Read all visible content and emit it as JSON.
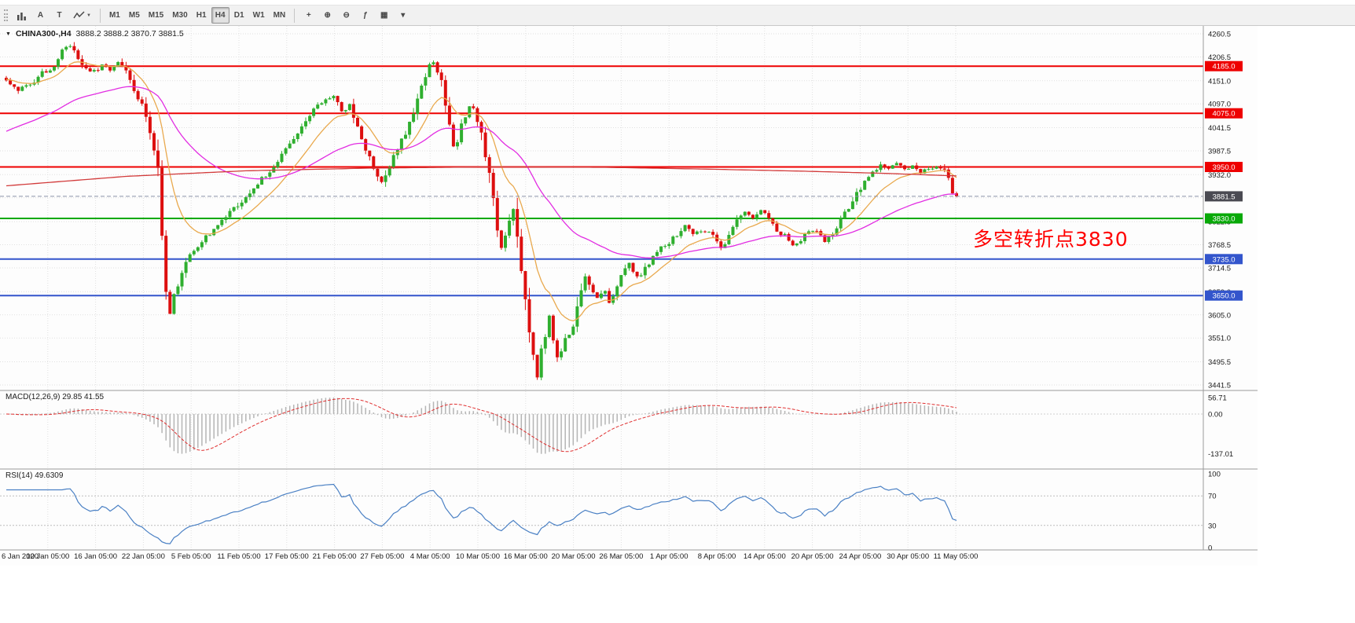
{
  "toolbar": {
    "left_buttons": [
      {
        "name": "bar-chart-icon",
        "icon": "bars"
      },
      {
        "name": "arrow-tool-button",
        "label": "A"
      },
      {
        "name": "text-tool-button",
        "label": "T"
      },
      {
        "name": "line-studies-button",
        "icon": "zigzag",
        "caret": "▼"
      }
    ],
    "timeframes": [
      {
        "label": "M1",
        "active": false
      },
      {
        "label": "M5",
        "active": false
      },
      {
        "label": "M15",
        "active": false
      },
      {
        "label": "M30",
        "active": false
      },
      {
        "label": "H1",
        "active": false
      },
      {
        "label": "H4",
        "active": true
      },
      {
        "label": "D1",
        "active": false
      },
      {
        "label": "W1",
        "active": false
      },
      {
        "label": "MN",
        "active": false
      }
    ],
    "right_buttons": [
      {
        "name": "crosshair-icon",
        "glyph": "+"
      },
      {
        "name": "zoom-in-icon",
        "glyph": "⊕"
      },
      {
        "name": "zoom-out-icon",
        "glyph": "⊖"
      },
      {
        "name": "indicators-icon",
        "glyph": "ƒ"
      },
      {
        "name": "tile-windows-icon",
        "glyph": "▦"
      },
      {
        "name": "templates-dropdown-icon",
        "glyph": "▾"
      }
    ]
  },
  "chart": {
    "menu_glyph": "▼",
    "symbol_period": "CHINA300-,H4",
    "quote": "3888.2 3888.2 3870.7 3881.5",
    "annotation": {
      "text": "多空转折点3830",
      "color": "#ff0000"
    }
  },
  "indicators": {
    "macd": {
      "label": "MACD(12,26,9) 29.85 41.55",
      "axis_labels": [
        "56.71",
        "0.00",
        "-137.01"
      ],
      "hist_color": "#b5b5b5",
      "signal_color": "#e03030"
    },
    "rsi": {
      "label": "RSI(14) 49.6309",
      "axis_labels": [
        "100",
        "70",
        "30",
        "0"
      ],
      "line_color": "#4a80c4",
      "level_values": [
        100,
        70,
        30,
        0
      ]
    }
  },
  "chart_data": {
    "type": "candlestick",
    "symbol": "CHINA300-",
    "period": "H4",
    "ohlc_quote": {
      "open": 3888.2,
      "high": 3888.2,
      "low": 3870.7,
      "close": 3881.5
    },
    "ylim": [
      3441.5,
      4260.5
    ],
    "y_ticks": [
      "4260.5",
      "4206.5",
      "4151.0",
      "4097.0",
      "4041.5",
      "3987.5",
      "3932.0",
      "3878.0",
      "3822.5",
      "3768.5",
      "3714.5",
      "3659.0",
      "3605.0",
      "3551.0",
      "3495.5",
      "3441.5"
    ],
    "x_ticks": [
      "6 Jan 2020",
      "10 Jan 05:00",
      "16 Jan 05:00",
      "22 Jan 05:00",
      "5 Feb 05:00",
      "11 Feb 05:00",
      "17 Feb 05:00",
      "21 Feb 05:00",
      "27 Feb 05:00",
      "4 Mar 05:00",
      "10 Mar 05:00",
      "16 Mar 05:00",
      "20 Mar 05:00",
      "26 Mar 05:00",
      "1 Apr 05:00",
      "8 Apr 05:00",
      "14 Apr 05:00",
      "20 Apr 05:00",
      "24 Apr 05:00",
      "30 Apr 05:00",
      "11 May 05:00"
    ],
    "candles_count": 239,
    "last_close": 3881.5,
    "up_color": "#2faf2f",
    "down_color": "#dd0f0f",
    "close_anchors": [
      [
        0,
        4152
      ],
      [
        3,
        4130
      ],
      [
        6,
        4140
      ],
      [
        9,
        4168
      ],
      [
        12,
        4185
      ],
      [
        14,
        4222
      ],
      [
        16,
        4232
      ],
      [
        18,
        4200
      ],
      [
        20,
        4178
      ],
      [
        22,
        4172
      ],
      [
        24,
        4185
      ],
      [
        26,
        4178
      ],
      [
        28,
        4196
      ],
      [
        30,
        4170
      ],
      [
        32,
        4130
      ],
      [
        34,
        4092
      ],
      [
        36,
        4036
      ],
      [
        38,
        3952
      ],
      [
        39,
        3800
      ],
      [
        40,
        3660
      ],
      [
        41,
        3608
      ],
      [
        42,
        3650
      ],
      [
        44,
        3705
      ],
      [
        46,
        3745
      ],
      [
        49,
        3775
      ],
      [
        52,
        3805
      ],
      [
        55,
        3835
      ],
      [
        58,
        3862
      ],
      [
        61,
        3890
      ],
      [
        64,
        3922
      ],
      [
        67,
        3952
      ],
      [
        70,
        3988
      ],
      [
        73,
        4030
      ],
      [
        75,
        4062
      ],
      [
        78,
        4096
      ],
      [
        80,
        4105
      ],
      [
        82,
        4112
      ],
      [
        84,
        4082
      ],
      [
        86,
        4092
      ],
      [
        88,
        4042
      ],
      [
        90,
        3992
      ],
      [
        92,
        3948
      ],
      [
        94,
        3916
      ],
      [
        96,
        3952
      ],
      [
        98,
        3992
      ],
      [
        100,
        4032
      ],
      [
        102,
        4082
      ],
      [
        104,
        4142
      ],
      [
        106,
        4186
      ],
      [
        107,
        4192
      ],
      [
        109,
        4152
      ],
      [
        110,
        4102
      ],
      [
        111,
        4052
      ],
      [
        112,
        4002
      ],
      [
        113,
        4012
      ],
      [
        114,
        4046
      ],
      [
        115,
        4072
      ],
      [
        116,
        4092
      ],
      [
        117,
        4086
      ],
      [
        118,
        4062
      ],
      [
        120,
        3982
      ],
      [
        122,
        3872
      ],
      [
        123,
        3802
      ],
      [
        124,
        3762
      ],
      [
        125,
        3792
      ],
      [
        126,
        3832
      ],
      [
        127,
        3852
      ],
      [
        128,
        3792
      ],
      [
        129,
        3702
      ],
      [
        130,
        3642
      ],
      [
        131,
        3562
      ],
      [
        132,
        3502
      ],
      [
        133,
        3462
      ],
      [
        134,
        3522
      ],
      [
        135,
        3562
      ],
      [
        136,
        3602
      ],
      [
        137,
        3552
      ],
      [
        138,
        3502
      ],
      [
        139,
        3522
      ],
      [
        140,
        3545
      ],
      [
        141,
        3562
      ],
      [
        142,
        3578
      ],
      [
        143,
        3622
      ],
      [
        144,
        3662
      ],
      [
        145,
        3697
      ],
      [
        146,
        3672
      ],
      [
        147,
        3652
      ],
      [
        148,
        3642
      ],
      [
        149,
        3652
      ],
      [
        150,
        3662
      ],
      [
        151,
        3632
      ],
      [
        152,
        3652
      ],
      [
        153,
        3672
      ],
      [
        154,
        3702
      ],
      [
        156,
        3722
      ],
      [
        158,
        3692
      ],
      [
        160,
        3712
      ],
      [
        162,
        3742
      ],
      [
        164,
        3762
      ],
      [
        166,
        3774
      ],
      [
        168,
        3792
      ],
      [
        170,
        3812
      ],
      [
        172,
        3792
      ],
      [
        174,
        3802
      ],
      [
        176,
        3802
      ],
      [
        178,
        3772
      ],
      [
        179,
        3757
      ],
      [
        181,
        3792
      ],
      [
        183,
        3822
      ],
      [
        185,
        3842
      ],
      [
        187,
        3832
      ],
      [
        189,
        3847
      ],
      [
        190,
        3840
      ],
      [
        192,
        3812
      ],
      [
        194,
        3787
      ],
      [
        195,
        3792
      ],
      [
        197,
        3767
      ],
      [
        199,
        3782
      ],
      [
        201,
        3802
      ],
      [
        203,
        3802
      ],
      [
        205,
        3777
      ],
      [
        207,
        3792
      ],
      [
        209,
        3827
      ],
      [
        211,
        3857
      ],
      [
        213,
        3887
      ],
      [
        215,
        3917
      ],
      [
        217,
        3937
      ],
      [
        219,
        3952
      ],
      [
        221,
        3947
      ],
      [
        223,
        3957
      ],
      [
        225,
        3942
      ],
      [
        227,
        3950
      ],
      [
        229,
        3937
      ],
      [
        231,
        3947
      ],
      [
        233,
        3952
      ],
      [
        235,
        3942
      ],
      [
        236,
        3920
      ],
      [
        237,
        3892
      ],
      [
        238,
        3881.5
      ]
    ],
    "levels": [
      {
        "price": 4185.0,
        "label": "4185.0",
        "color": "#ee0000"
      },
      {
        "price": 4075.0,
        "label": "4075.0",
        "color": "#ee0000"
      },
      {
        "price": 3950.0,
        "label": "3950.0",
        "color": "#ee0000"
      },
      {
        "price": 3830.0,
        "label": "3830.0",
        "color": "#08a908"
      },
      {
        "price": 3735.0,
        "label": "3735.0",
        "color": "#3355cc"
      },
      {
        "price": 3650.0,
        "label": "3650.0",
        "color": "#3355cc"
      }
    ],
    "current_price": {
      "price": 3881.5,
      "label": "3881.5",
      "badge_color": "#4a4a52"
    },
    "moving_averages": [
      {
        "name": "ma-orange-fast",
        "type": "ema",
        "period": 13,
        "seed": 4155,
        "color": "#e9a94e"
      },
      {
        "name": "ma-magenta-mid",
        "type": "ema",
        "period": 50,
        "seed": 4028,
        "color": "#e22de2"
      },
      {
        "name": "ma-red-slow",
        "type": "path",
        "color": "#d23b3b",
        "anchors": [
          [
            0,
            3906
          ],
          [
            30,
            3928
          ],
          [
            60,
            3941
          ],
          [
            90,
            3947
          ],
          [
            120,
            3950
          ],
          [
            150,
            3949
          ],
          [
            175,
            3945
          ],
          [
            200,
            3940
          ],
          [
            220,
            3935
          ],
          [
            238,
            3929
          ]
        ]
      }
    ],
    "macd": {
      "params": [
        12,
        26,
        9
      ],
      "display_max": 56.71,
      "display_min": -137.01,
      "last_main": 29.85,
      "last_signal": 41.55
    },
    "rsi": {
      "period": 14,
      "last": 49.6309,
      "overbought": 70,
      "oversold": 30
    }
  }
}
